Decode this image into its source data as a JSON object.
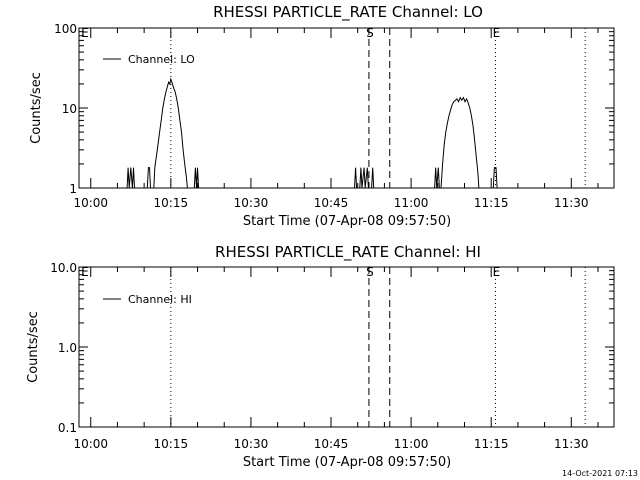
{
  "chart_data": [
    {
      "type": "line",
      "title": "RHESSI PARTICLE_RATE Channel: LO",
      "xlabel": "Start Time (07-Apr-08 09:57:50)",
      "ylabel": "Counts/sec",
      "yscale": "log",
      "ylim": [
        1,
        100
      ],
      "yticks": [
        "1",
        "10",
        "100"
      ],
      "xlim_minutes": [
        -2.2,
        41.7
      ],
      "xticks": [
        {
          "t": 0,
          "label": "10:00"
        },
        {
          "t": 15,
          "label": "10:15"
        },
        {
          "t": 30,
          "label": "10:30"
        },
        {
          "t": 45,
          "label": "10:45"
        },
        {
          "t": 60,
          "label": "11:00"
        },
        {
          "t": 75,
          "label": "11:15"
        },
        {
          "t": 90,
          "label": "11:30"
        }
      ],
      "legend": "top-left",
      "series": [
        {
          "name": "Channel: LO",
          "segments": [
            [
              [
                6.8,
                1
              ],
              [
                7.0,
                1.8
              ],
              [
                7.2,
                1
              ],
              [
                7.5,
                1.8
              ],
              [
                7.8,
                1
              ],
              [
                8.0,
                1.8
              ],
              [
                8.2,
                1
              ]
            ],
            [
              [
                10.6,
                1
              ],
              [
                10.8,
                1.8
              ],
              [
                11.0,
                1.8
              ],
              [
                11.2,
                1
              ]
            ],
            [
              [
                11.8,
                1
              ],
              [
                12.0,
                1.8
              ],
              [
                12.3,
                2.5
              ],
              [
                12.6,
                3.5
              ],
              [
                12.9,
                5
              ],
              [
                13.2,
                7
              ],
              [
                13.5,
                10
              ],
              [
                13.8,
                13
              ],
              [
                14.1,
                16
              ],
              [
                14.4,
                19
              ],
              [
                14.6,
                21
              ],
              [
                14.8,
                20
              ],
              [
                15.0,
                23
              ],
              [
                15.2,
                21
              ],
              [
                15.5,
                18
              ],
              [
                15.8,
                16
              ],
              [
                16.1,
                13
              ],
              [
                16.4,
                10
              ],
              [
                16.7,
                7
              ],
              [
                17.0,
                5
              ],
              [
                17.3,
                3
              ],
              [
                17.6,
                2
              ],
              [
                17.9,
                1.4
              ],
              [
                18.1,
                1
              ]
            ],
            [
              [
                19.4,
                1
              ],
              [
                19.6,
                1.8
              ],
              [
                19.8,
                1
              ],
              [
                20.0,
                1.8
              ],
              [
                20.2,
                1
              ]
            ],
            [
              [
                49.4,
                1
              ],
              [
                49.6,
                1.8
              ],
              [
                49.8,
                1
              ]
            ],
            [
              [
                50.4,
                1
              ],
              [
                50.6,
                1.8
              ],
              [
                50.8,
                1
              ],
              [
                51.2,
                1.8
              ],
              [
                51.4,
                1
              ],
              [
                51.8,
                1.8
              ],
              [
                52.0,
                1
              ]
            ],
            [
              [
                52.6,
                1
              ],
              [
                52.8,
                1.8
              ],
              [
                53.0,
                1
              ]
            ],
            [
              [
                64.4,
                1
              ],
              [
                64.6,
                1.8
              ],
              [
                64.8,
                1
              ],
              [
                65.1,
                1.8
              ],
              [
                65.3,
                1
              ]
            ],
            [
              [
                65.6,
                1
              ],
              [
                65.9,
                2
              ],
              [
                66.2,
                3.5
              ],
              [
                66.5,
                5
              ],
              [
                66.8,
                6.5
              ],
              [
                67.1,
                8
              ],
              [
                67.4,
                9.5
              ],
              [
                67.7,
                11
              ],
              [
                68.0,
                12
              ],
              [
                68.3,
                12.5
              ],
              [
                68.6,
                13
              ],
              [
                68.9,
                12
              ],
              [
                69.2,
                13.5
              ],
              [
                69.5,
                12.5
              ],
              [
                69.8,
                13.5
              ],
              [
                70.1,
                12
              ],
              [
                70.4,
                13
              ],
              [
                70.7,
                11.5
              ],
              [
                71.0,
                10
              ],
              [
                71.3,
                8
              ],
              [
                71.6,
                6
              ],
              [
                71.9,
                4
              ],
              [
                72.2,
                2.5
              ],
              [
                72.5,
                1.6
              ],
              [
                72.7,
                1
              ]
            ],
            [
              [
                75.4,
                1
              ],
              [
                75.6,
                1.8
              ],
              [
                75.9,
                1.8
              ],
              [
                76.1,
                1
              ]
            ]
          ]
        }
      ],
      "markers": [
        {
          "label": "E",
          "t": -2.0,
          "style": "dotted"
        },
        {
          "label": "",
          "t": 15.0,
          "style": "dotted"
        },
        {
          "label": "S",
          "t": 52.1,
          "style": "dashed"
        },
        {
          "label": "",
          "t": 56.0,
          "style": "dashed"
        },
        {
          "label": "E",
          "t": 75.8,
          "style": "dotted"
        },
        {
          "label": "",
          "t": 92.6,
          "style": "dotted"
        }
      ]
    },
    {
      "type": "line",
      "title": "RHESSI PARTICLE_RATE Channel: HI",
      "xlabel": "Start Time (07-Apr-08 09:57:50)",
      "ylabel": "Counts/sec",
      "yscale": "log",
      "ylim": [
        0.1,
        10
      ],
      "yticks": [
        "0.1",
        "1.0",
        "10.0"
      ],
      "xlim_minutes": [
        -2.2,
        41.7
      ],
      "xticks": [
        {
          "t": 0,
          "label": "10:00"
        },
        {
          "t": 15,
          "label": "10:15"
        },
        {
          "t": 30,
          "label": "10:30"
        },
        {
          "t": 45,
          "label": "10:45"
        },
        {
          "t": 60,
          "label": "11:00"
        },
        {
          "t": 75,
          "label": "11:15"
        },
        {
          "t": 90,
          "label": "11:30"
        }
      ],
      "legend": "top-left",
      "series": [
        {
          "name": "Channel: HI",
          "segments": []
        }
      ],
      "markers": [
        {
          "label": "E",
          "t": -2.0,
          "style": "dotted"
        },
        {
          "label": "",
          "t": 15.0,
          "style": "dotted"
        },
        {
          "label": "S",
          "t": 52.1,
          "style": "dashed"
        },
        {
          "label": "",
          "t": 56.0,
          "style": "dashed"
        },
        {
          "label": "E",
          "t": 75.8,
          "style": "dotted"
        },
        {
          "label": "",
          "t": 92.6,
          "style": "dotted"
        }
      ]
    }
  ],
  "footer": {
    "timestamp": "14-Oct-2021 07:13"
  }
}
